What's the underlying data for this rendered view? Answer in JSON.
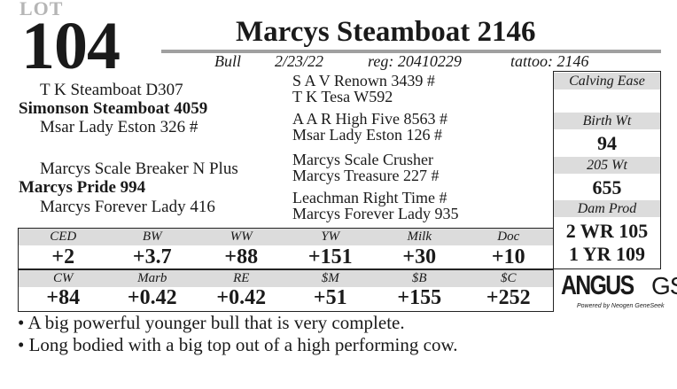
{
  "lot": {
    "label": "LOT",
    "number": "104"
  },
  "animal": {
    "name": "Marcys Steamboat 2146",
    "sex": "Bull",
    "birth_date": "2/23/22",
    "reg": "reg: 20410229",
    "tattoo": "tattoo: 2146"
  },
  "pedigree": {
    "sire": "Simonson Steamboat 4059",
    "sire_sire": "T K Steamboat D307",
    "sire_dam": "Msar Lady Eston 326  #",
    "dam": "Marcys Pride 994",
    "dam_sire": "Marcys Scale Breaker N Plus",
    "dam_dam": "Marcys Forever Lady 416",
    "ss_sire": "S A V Renown 3439 #",
    "ss_dam": "T K Tesa W592",
    "sd_sire": "A A R High Five 8563 #",
    "sd_dam": "Msar Lady Eston 126 #",
    "ds_sire": "Marcys Scale Crusher",
    "ds_dam": "Marcys Treasure 227 #",
    "dd_sire": "Leachman Right Time #",
    "dd_dam": "Marcys Forever Lady 935"
  },
  "performance": {
    "calving_ease_label": "Calving Ease",
    "calving_ease": "",
    "birth_wt_label": "Birth Wt",
    "birth_wt": "94",
    "wt205_label": "205 Wt",
    "wt205": "655",
    "dam_prod_label": "Dam Prod",
    "dam_prod_wr": "2 WR 105",
    "dam_prod_yr": "1 YR 109"
  },
  "epds": {
    "row1": [
      {
        "label": "CED",
        "value": "+2"
      },
      {
        "label": "BW",
        "value": "+3.7"
      },
      {
        "label": "WW",
        "value": "+88"
      },
      {
        "label": "YW",
        "value": "+151"
      },
      {
        "label": "Milk",
        "value": "+30"
      },
      {
        "label": "Doc",
        "value": "+10"
      }
    ],
    "row2": [
      {
        "label": "CW",
        "value": "+84"
      },
      {
        "label": "Marb",
        "value": "+0.42"
      },
      {
        "label": "RE",
        "value": "+0.42"
      },
      {
        "label": "$M",
        "value": "+51"
      },
      {
        "label": "$B",
        "value": "+155"
      },
      {
        "label": "$C",
        "value": "+252"
      }
    ]
  },
  "logo": {
    "brand": "ANGUS",
    "suffix": "GS",
    "tagline": "Powered by Neogen GeneSeek"
  },
  "comments": [
    "A big powerful younger bull that is very complete.",
    "Long bodied with a big top out of a high performing cow."
  ],
  "colors": {
    "header_gray": "#dcdcdc",
    "rule_gray": "#a0a0a0",
    "lot_gray": "#b5b5b5"
  }
}
